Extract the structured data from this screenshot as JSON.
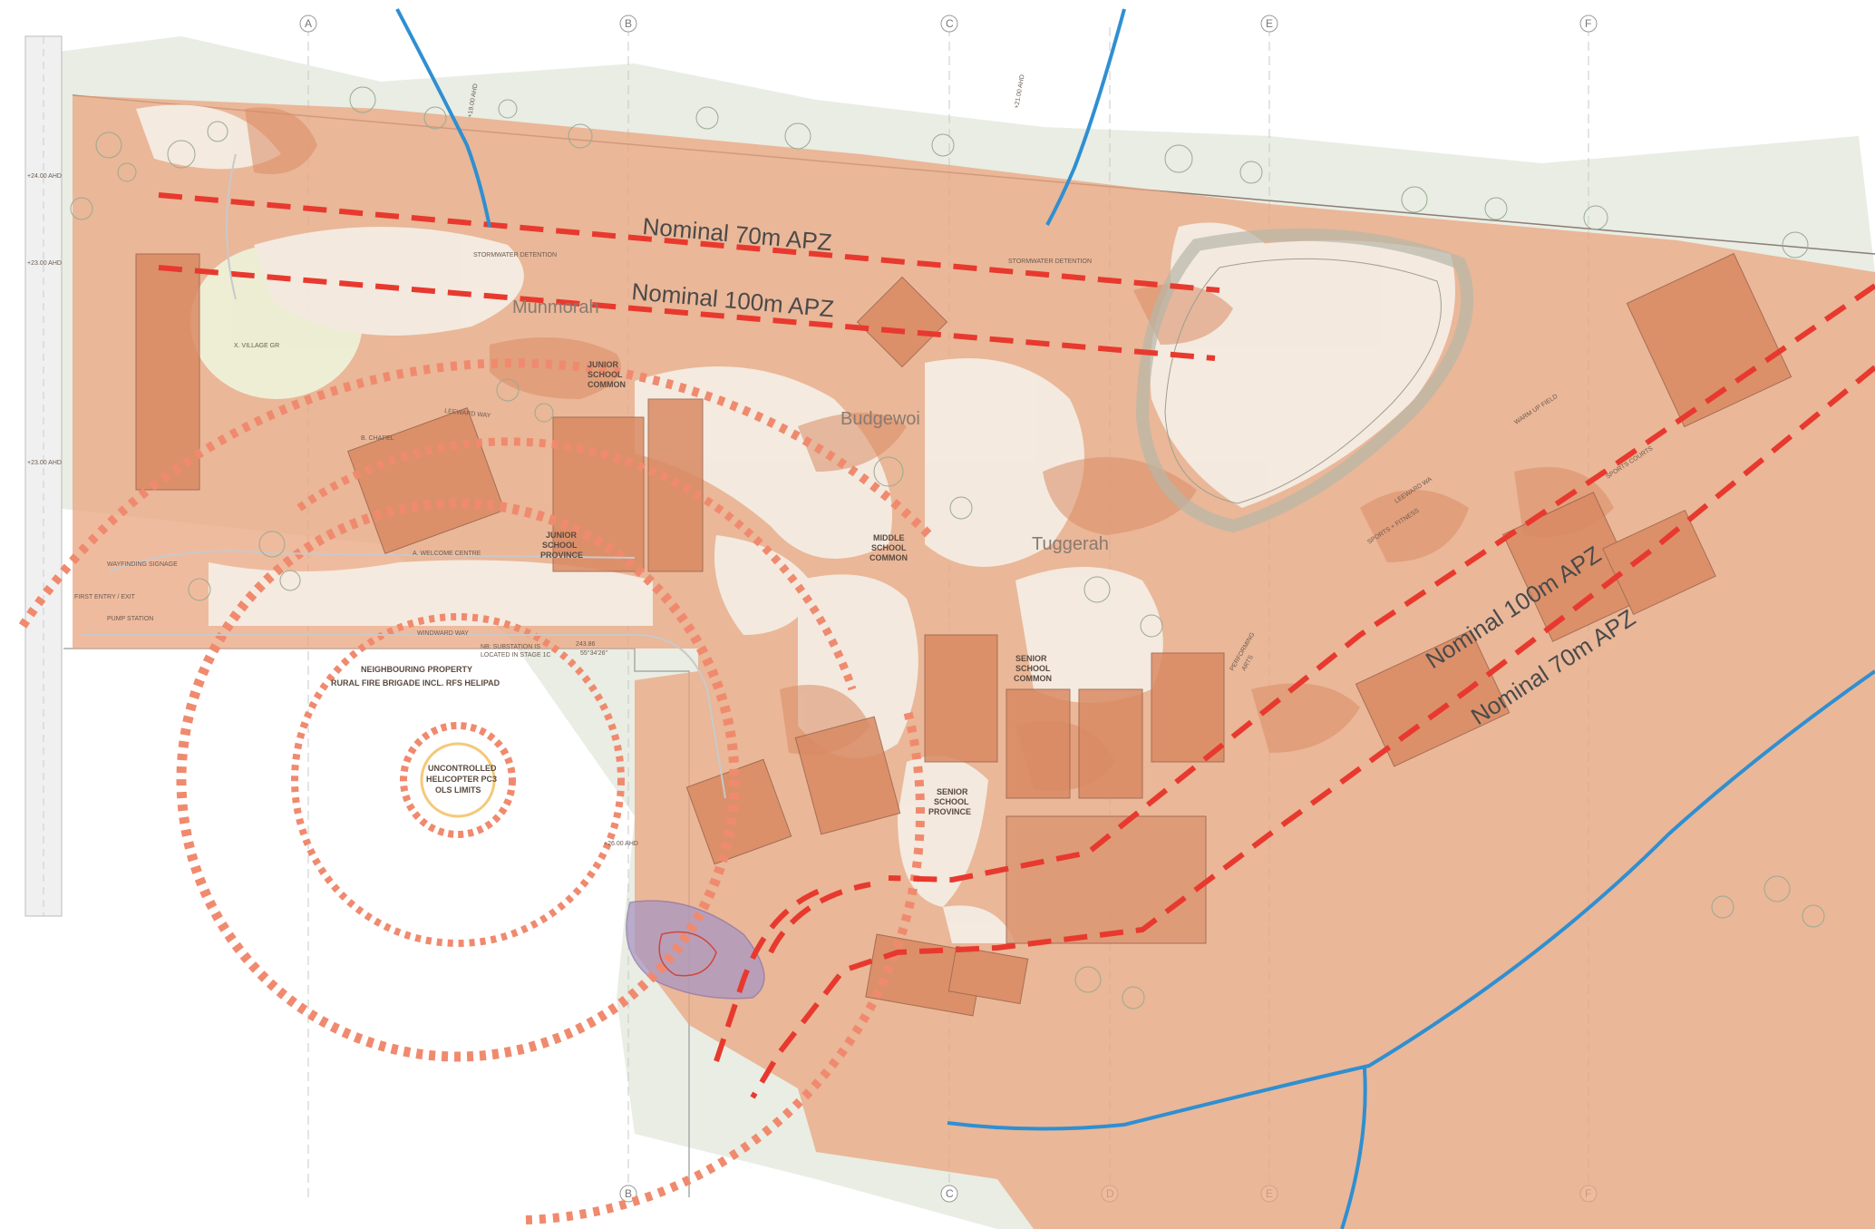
{
  "grid": {
    "top": [
      "A",
      "B",
      "C",
      "E",
      "F"
    ],
    "bottom": [
      "B",
      "C",
      "D",
      "E",
      "F"
    ]
  },
  "apz_labels": {
    "top_70": "Nominal 70m APZ",
    "top_100": "Nominal 100m APZ",
    "right_100": "Nominal 100m APZ",
    "right_70": "Nominal 70m APZ"
  },
  "zones": {
    "munmorah": "Munmorah",
    "budgewoi": "Budgewoi",
    "tuggerah": "Tuggerah"
  },
  "helipad": {
    "neighbour_line1": "NEIGHBOURING PROPERTY",
    "neighbour_line2": "RURAL FIRE BRIGADE INCL. RFS HELIPAD",
    "ols_line1": "UNCONTROLLED",
    "ols_line2": "HELICOPTER PC3",
    "ols_line3": "OLS LIMITS"
  },
  "site_labels": {
    "junior_common_1": "JUNIOR",
    "junior_common_2": "SCHOOL",
    "junior_common_3": "COMMON",
    "junior_province_1": "JUNIOR",
    "junior_province_2": "SCHOOL",
    "junior_province_3": "PROVINCE",
    "middle_1": "MIDDLE",
    "middle_2": "SCHOOL",
    "middle_3": "COMMON",
    "senior_common_1": "SENIOR",
    "senior_common_2": "SCHOOL",
    "senior_common_3": "COMMON",
    "senior_province_1": "SENIOR",
    "senior_province_2": "SCHOOL",
    "senior_province_3": "PROVINCE",
    "chapel": "B. CHAPEL",
    "village_green": "X. VILLAGE GR",
    "welcome": "A. WELCOME CENTRE",
    "wayfinding": "WAYFINDING SIGNAGE",
    "windward": "WINDWARD WAY",
    "leeward": "LEEWARD WAY",
    "leeward2": "LEEWARD WA",
    "warmup": "WARM UP FIELD",
    "sports_courts": "SPORTS COURTS",
    "sports_fitness": "SPORTS + FITNESS",
    "performing_1": "PERFORMING",
    "performing_2": "ARTS",
    "stormwater": "STORMWATER DETENTION",
    "stormwater2": "STORMWATER DETENTION",
    "substation_1": "NB: SUBSTATION IS",
    "substation_2": "LOCATED IN STAGE 1C",
    "bearing": "243.86",
    "bearing2": "55°34'26\"",
    "first_entry": "FIRST ENTRY / EXIT",
    "pump": "PUMP STATION",
    "ahd_1": "+24.00 AHD",
    "ahd_2": "+23.00 AHD",
    "ahd_3": "+23.00 AHD",
    "ahd_4": "+26.00 AHD",
    "ahd_5": "+19.00 AHD",
    "ahd_6": "+21.00 AHD"
  },
  "colors": {
    "apz_fill": "#e9a47f",
    "apz_dash": "#e8392f",
    "ols_dot": "#f08a6e",
    "creek": "#2f8fd1",
    "purple_zone": "#a896c2",
    "vegetation": "#dfe6d8"
  }
}
